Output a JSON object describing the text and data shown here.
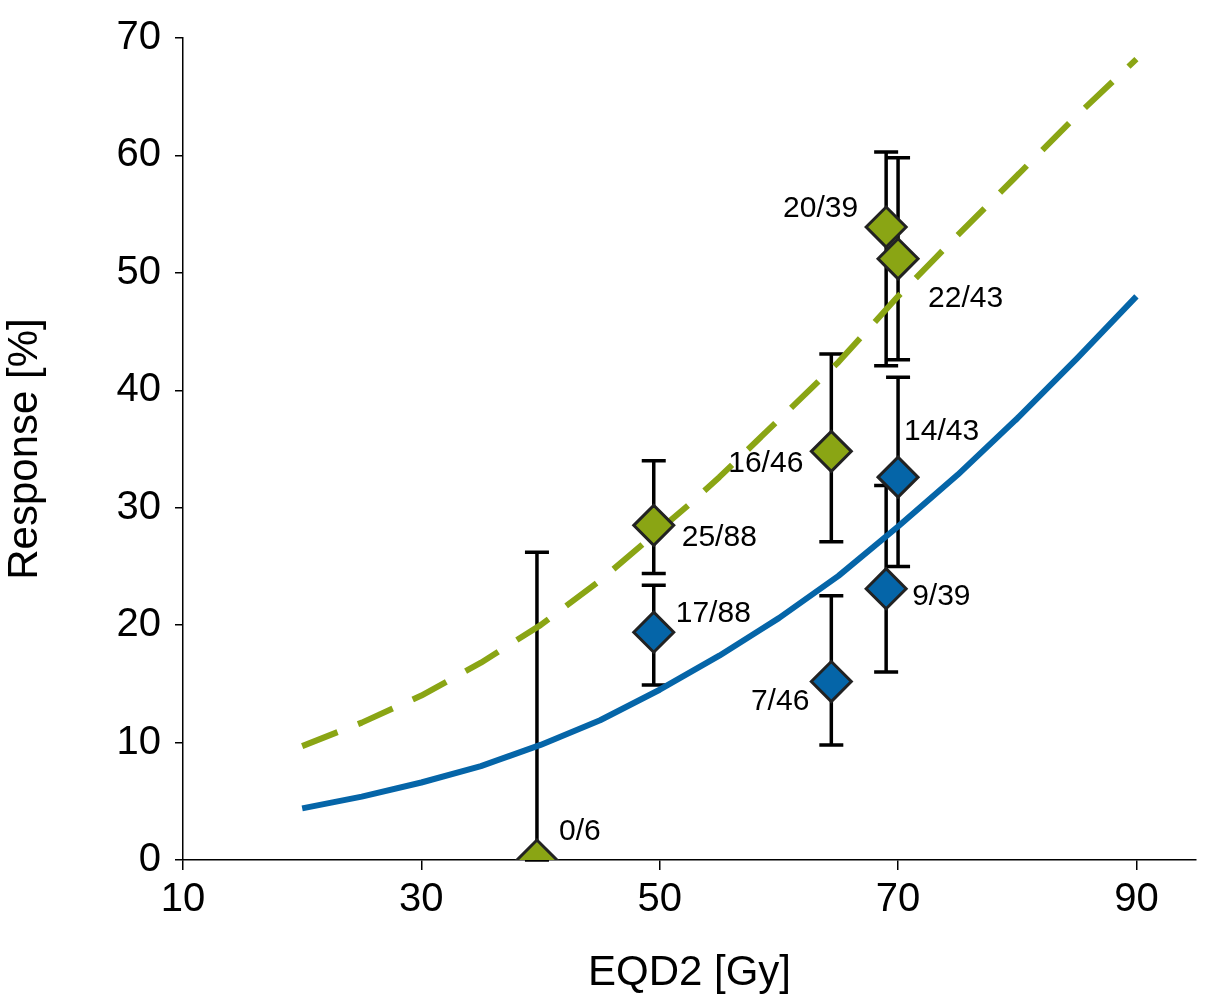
{
  "chart_data": {
    "type": "scatter",
    "xlabel": "EQD2 [Gy]",
    "ylabel": "Response [%]",
    "xlim": [
      10,
      95
    ],
    "xticks": [
      10,
      30,
      50,
      70,
      90
    ],
    "ylim": [
      0,
      70
    ],
    "yticks": [
      0,
      10,
      20,
      30,
      40,
      50,
      60,
      70
    ],
    "grid": false,
    "legend": false,
    "marker": "diamond",
    "series": [
      {
        "type": "line",
        "color": "#8aa514",
        "line_style": "dashed",
        "marker": "none",
        "x": [
          20,
          25,
          30,
          35,
          40,
          45,
          52.5,
          55,
          60,
          65,
          70,
          75,
          80,
          85,
          90
        ],
        "values": [
          9.7,
          11.7,
          14.0,
          16.8,
          20.0,
          23.8,
          30.3,
          32.6,
          37.5,
          42.4,
          48.0,
          53.2,
          58.3,
          63.4,
          68.2
        ]
      },
      {
        "type": "line",
        "color": "#0565a8",
        "line_style": "solid",
        "marker": "none",
        "x": [
          20,
          25,
          30,
          35,
          40,
          45,
          50,
          55,
          60,
          65,
          70,
          75,
          80,
          85,
          90
        ],
        "values": [
          4.4,
          5.4,
          6.6,
          8.0,
          9.8,
          11.9,
          14.5,
          17.4,
          20.6,
          24.2,
          28.4,
          32.8,
          37.6,
          42.7,
          48.0
        ]
      },
      {
        "type": "scatter",
        "color": "#8aa514",
        "x": [
          39.7,
          49.5,
          64.4,
          69.0,
          70.0
        ],
        "values": [
          0,
          28.5,
          34.8,
          53.9,
          51.2
        ],
        "errors": [
          [
            0,
            26.2
          ],
          [
            24.4,
            34.0
          ],
          [
            27.1,
            43.1
          ],
          [
            42.1,
            60.3
          ],
          [
            42.6,
            59.8
          ]
        ]
      },
      {
        "type": "scatter",
        "color": "#0565a8",
        "x": [
          49.5,
          64.4,
          69.0,
          70.0
        ],
        "values": [
          19.4,
          15.2,
          23.1,
          32.6
        ],
        "errors": [
          [
            14.9,
            23.4
          ],
          [
            9.8,
            22.5
          ],
          [
            16.0,
            31.9
          ],
          [
            25.0,
            41.1
          ]
        ]
      }
    ],
    "annotations": [
      {
        "text": "0/6",
        "x": 39.7,
        "y": 0
      },
      {
        "text": "25/88",
        "x": 49.5,
        "y": 28.5
      },
      {
        "text": "17/88",
        "x": 49.5,
        "y": 19.4
      },
      {
        "text": "16/46",
        "x": 64.4,
        "y": 34.8
      },
      {
        "text": "20/39",
        "x": 69.0,
        "y": 53.9
      },
      {
        "text": "22/43",
        "x": 70.0,
        "y": 51.2
      },
      {
        "text": "14/43",
        "x": 70.0,
        "y": 32.6
      },
      {
        "text": "9/39",
        "x": 69.0,
        "y": 23.1
      },
      {
        "text": "7/46",
        "x": 64.4,
        "y": 15.2
      }
    ]
  }
}
